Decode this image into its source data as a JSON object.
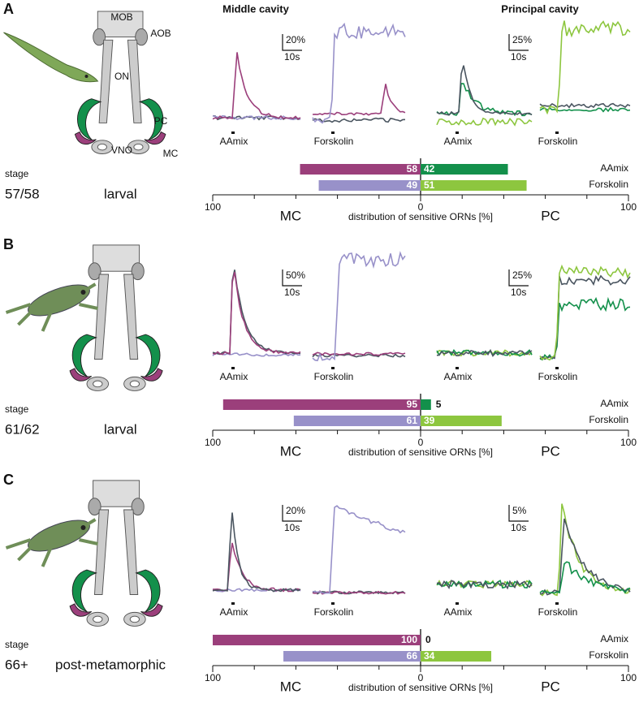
{
  "headers": {
    "middle_cavity": "Middle cavity",
    "principal_cavity": "Principal cavity"
  },
  "anatomy_labels": {
    "mob": "MOB",
    "aob": "AOB",
    "on": "ON",
    "pc": "PC",
    "vno": "VNO",
    "mc": "MC"
  },
  "panels": [
    {
      "label": "A",
      "stage_title": "stage",
      "stage": "57/58",
      "phase": "larval",
      "stimuli": [
        "AAmix",
        "Forskolin",
        "AAmix",
        "Forskolin"
      ],
      "scale_bars": {
        "mc_amplitude": "20%",
        "mc_time": "10s",
        "pc_amplitude": "25%",
        "pc_time": "10s"
      },
      "chart_data": {
        "type": "bar",
        "xlabel": "distribution of sensitive ORNs [%]",
        "categories": [
          "AAmix",
          "Forskolin"
        ],
        "xlim": [
          -100,
          100
        ],
        "xticks": [
          {
            "value": -100,
            "label": "100"
          },
          0,
          100
        ],
        "xminor": [
          -80,
          -60,
          -40,
          -20,
          20,
          40,
          60,
          80
        ],
        "series": [
          {
            "name": "MC",
            "direction": "left",
            "colors": [
              "#9b3f7b",
              "#9891c9"
            ],
            "values": [
              58,
              49
            ]
          },
          {
            "name": "PC",
            "direction": "right",
            "colors": [
              "#13904b",
              "#8dc63f"
            ],
            "values": [
              42,
              51
            ]
          }
        ]
      }
    },
    {
      "label": "B",
      "stage_title": "stage",
      "stage": "61/62",
      "phase": "larval",
      "stimuli": [
        "AAmix",
        "Forskolin",
        "AAmix",
        "Forskolin"
      ],
      "scale_bars": {
        "mc_amplitude": "50%",
        "mc_time": "10s",
        "pc_amplitude": "25%",
        "pc_time": "10s"
      },
      "chart_data": {
        "type": "bar",
        "xlabel": "distribution of sensitive ORNs [%]",
        "categories": [
          "AAmix",
          "Forskolin"
        ],
        "xlim": [
          -100,
          100
        ],
        "xticks": [
          {
            "value": -100,
            "label": "100"
          },
          0,
          100
        ],
        "xminor": [
          -80,
          -60,
          -40,
          -20,
          20,
          40,
          60,
          80
        ],
        "series": [
          {
            "name": "MC",
            "direction": "left",
            "colors": [
              "#9b3f7b",
              "#9891c9"
            ],
            "values": [
              95,
              61
            ]
          },
          {
            "name": "PC",
            "direction": "right",
            "colors": [
              "#13904b",
              "#8dc63f"
            ],
            "values": [
              5,
              39
            ]
          }
        ]
      }
    },
    {
      "label": "C",
      "stage_title": "stage",
      "stage": "66+",
      "phase": "post-metamorphic",
      "stimuli": [
        "AAmix",
        "Forskolin",
        "AAmix",
        "Forskolin"
      ],
      "scale_bars": {
        "mc_amplitude": "20%",
        "mc_time": "10s",
        "pc_amplitude": "5%",
        "pc_time": "10s"
      },
      "chart_data": {
        "type": "bar",
        "xlabel": "distribution of sensitive ORNs [%]",
        "categories": [
          "AAmix",
          "Forskolin"
        ],
        "xlim": [
          -100,
          100
        ],
        "xticks": [
          {
            "value": -100,
            "label": "100"
          },
          0,
          100
        ],
        "xminor": [
          -80,
          -60,
          -40,
          -20,
          20,
          40,
          60,
          80
        ],
        "series": [
          {
            "name": "MC",
            "direction": "left",
            "colors": [
              "#9b3f7b",
              "#9891c9"
            ],
            "values": [
              100,
              66
            ]
          },
          {
            "name": "PC",
            "direction": "right",
            "colors": [
              "#13904b",
              "#8dc63f"
            ],
            "values": [
              0,
              34
            ]
          }
        ]
      }
    }
  ]
}
